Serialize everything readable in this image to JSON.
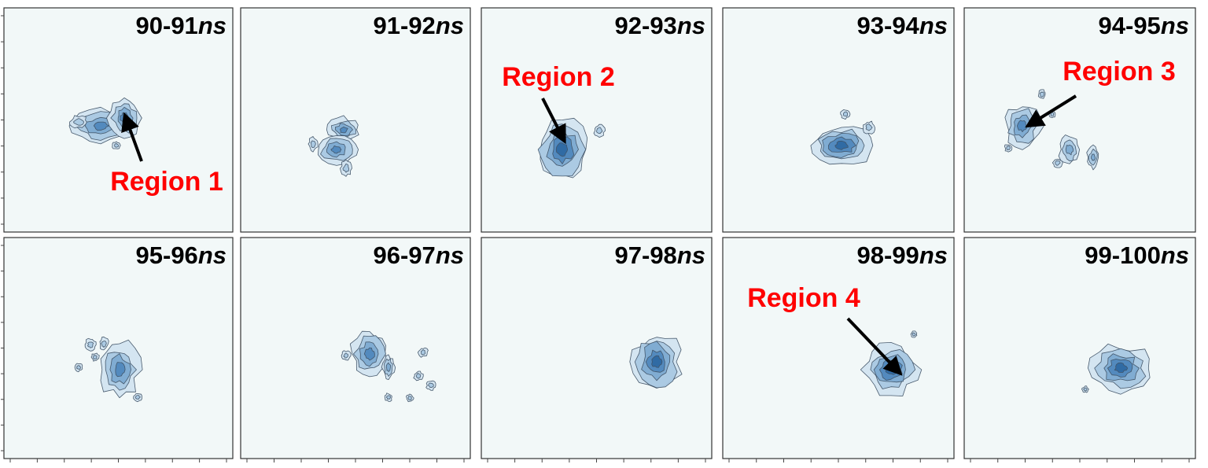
{
  "panels": [
    {
      "range": "90-91",
      "unit": "ns"
    },
    {
      "range": "91-92",
      "unit": "ns"
    },
    {
      "range": "92-93",
      "unit": "ns"
    },
    {
      "range": "93-94",
      "unit": "ns"
    },
    {
      "range": "94-95",
      "unit": "ns"
    },
    {
      "range": "95-96",
      "unit": "ns"
    },
    {
      "range": "96-97",
      "unit": "ns"
    },
    {
      "range": "97-98",
      "unit": "ns"
    },
    {
      "range": "98-99",
      "unit": "ns"
    },
    {
      "range": "99-100",
      "unit": "ns"
    }
  ],
  "annotations": [
    {
      "label": "Region 1"
    },
    {
      "label": "Region 2"
    },
    {
      "label": "Region 3"
    },
    {
      "label": "Region 4"
    }
  ]
}
